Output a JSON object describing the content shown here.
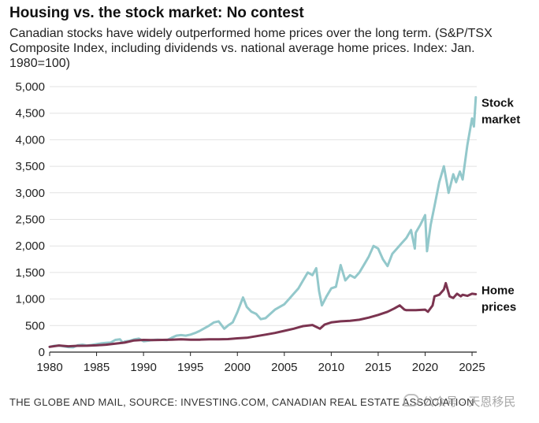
{
  "chart_data": {
    "type": "line",
    "title": "Housing vs. the stock market: No contest",
    "subtitle": "Canadian stocks have widely outperformed home prices over the long term. (S&P/TSX Composite Index, including dividends vs. national average home prices. Index: Jan. 1980=100)",
    "xlabel": "",
    "ylabel": "",
    "xlim": [
      1980,
      2025.5
    ],
    "ylim": [
      0,
      5000
    ],
    "x_ticks": [
      1980,
      1985,
      1990,
      1995,
      2000,
      2005,
      2010,
      2015,
      2020,
      2025
    ],
    "y_ticks": [
      0,
      500,
      1000,
      1500,
      2000,
      2500,
      3000,
      3500,
      4000,
      4500,
      5000
    ],
    "y_tick_labels": [
      "0",
      "500",
      "1,000",
      "1,500",
      "2,000",
      "2,500",
      "3,000",
      "3,500",
      "4,000",
      "4,500",
      "5,000"
    ],
    "grid": "horizontal",
    "legend": "inline labels at right end of lines",
    "series": [
      {
        "name": "Stock market",
        "label_lines": [
          "Stock",
          "market"
        ],
        "color": "#93c8cb",
        "points": [
          [
            1980,
            100
          ],
          [
            1980.5,
            118
          ],
          [
            1981,
            125
          ],
          [
            1981.5,
            110
          ],
          [
            1982,
            95
          ],
          [
            1982.5,
            90
          ],
          [
            1983,
            130
          ],
          [
            1983.5,
            140
          ],
          [
            1984,
            125
          ],
          [
            1984.5,
            135
          ],
          [
            1985,
            150
          ],
          [
            1985.5,
            165
          ],
          [
            1986,
            175
          ],
          [
            1986.5,
            180
          ],
          [
            1987,
            230
          ],
          [
            1987.5,
            240
          ],
          [
            1987.8,
            175
          ],
          [
            1988,
            200
          ],
          [
            1988.5,
            210
          ],
          [
            1989,
            240
          ],
          [
            1989.5,
            255
          ],
          [
            1990,
            205
          ],
          [
            1990.5,
            215
          ],
          [
            1991,
            230
          ],
          [
            1991.5,
            235
          ],
          [
            1992,
            230
          ],
          [
            1992.5,
            225
          ],
          [
            1993,
            270
          ],
          [
            1993.5,
            310
          ],
          [
            1994,
            320
          ],
          [
            1994.5,
            310
          ],
          [
            1995,
            330
          ],
          [
            1995.5,
            360
          ],
          [
            1996,
            400
          ],
          [
            1996.5,
            450
          ],
          [
            1997,
            500
          ],
          [
            1997.5,
            560
          ],
          [
            1998,
            580
          ],
          [
            1998.6,
            440
          ],
          [
            1999,
            500
          ],
          [
            1999.5,
            560
          ],
          [
            2000,
            750
          ],
          [
            2000.6,
            1030
          ],
          [
            2001,
            850
          ],
          [
            2001.5,
            760
          ],
          [
            2002,
            720
          ],
          [
            2002.5,
            620
          ],
          [
            2003,
            640
          ],
          [
            2003.5,
            720
          ],
          [
            2004,
            800
          ],
          [
            2004.5,
            850
          ],
          [
            2005,
            900
          ],
          [
            2005.5,
            1000
          ],
          [
            2006,
            1100
          ],
          [
            2006.5,
            1200
          ],
          [
            2007,
            1350
          ],
          [
            2007.5,
            1500
          ],
          [
            2008,
            1450
          ],
          [
            2008.4,
            1580
          ],
          [
            2008.7,
            1150
          ],
          [
            2009,
            880
          ],
          [
            2009.5,
            1050
          ],
          [
            2010,
            1200
          ],
          [
            2010.5,
            1230
          ],
          [
            2011,
            1640
          ],
          [
            2011.5,
            1350
          ],
          [
            2012,
            1450
          ],
          [
            2012.5,
            1400
          ],
          [
            2013,
            1500
          ],
          [
            2013.5,
            1650
          ],
          [
            2014,
            1800
          ],
          [
            2014.5,
            2000
          ],
          [
            2015,
            1950
          ],
          [
            2015.5,
            1750
          ],
          [
            2016,
            1620
          ],
          [
            2016.5,
            1850
          ],
          [
            2017,
            1950
          ],
          [
            2017.5,
            2050
          ],
          [
            2018,
            2150
          ],
          [
            2018.5,
            2300
          ],
          [
            2018.9,
            1950
          ],
          [
            2019,
            2250
          ],
          [
            2019.5,
            2400
          ],
          [
            2020,
            2580
          ],
          [
            2020.2,
            1900
          ],
          [
            2020.6,
            2400
          ],
          [
            2021,
            2750
          ],
          [
            2021.5,
            3200
          ],
          [
            2022,
            3500
          ],
          [
            2022.5,
            3000
          ],
          [
            2023,
            3350
          ],
          [
            2023.3,
            3200
          ],
          [
            2023.7,
            3400
          ],
          [
            2024,
            3250
          ],
          [
            2024.5,
            3900
          ],
          [
            2025,
            4400
          ],
          [
            2025.2,
            4250
          ],
          [
            2025.4,
            4800
          ]
        ]
      },
      {
        "name": "Home prices",
        "label_lines": [
          "Home",
          "prices"
        ],
        "color": "#7b3450",
        "points": [
          [
            1980,
            100
          ],
          [
            1981,
            125
          ],
          [
            1982,
            110
          ],
          [
            1983,
            118
          ],
          [
            1984,
            120
          ],
          [
            1985,
            128
          ],
          [
            1986,
            140
          ],
          [
            1987,
            160
          ],
          [
            1988,
            180
          ],
          [
            1989,
            220
          ],
          [
            1990,
            230
          ],
          [
            1991,
            225
          ],
          [
            1992,
            230
          ],
          [
            1993,
            235
          ],
          [
            1994,
            240
          ],
          [
            1995,
            235
          ],
          [
            1996,
            235
          ],
          [
            1997,
            240
          ],
          [
            1998,
            240
          ],
          [
            1999,
            245
          ],
          [
            2000,
            260
          ],
          [
            2001,
            270
          ],
          [
            2002,
            300
          ],
          [
            2003,
            330
          ],
          [
            2004,
            360
          ],
          [
            2005,
            400
          ],
          [
            2006,
            440
          ],
          [
            2007,
            490
          ],
          [
            2008,
            510
          ],
          [
            2008.8,
            440
          ],
          [
            2009.3,
            520
          ],
          [
            2010,
            560
          ],
          [
            2011,
            580
          ],
          [
            2012,
            590
          ],
          [
            2013,
            610
          ],
          [
            2014,
            650
          ],
          [
            2015,
            700
          ],
          [
            2016,
            760
          ],
          [
            2016.7,
            820
          ],
          [
            2017.3,
            880
          ],
          [
            2017.8,
            800
          ],
          [
            2018,
            790
          ],
          [
            2019,
            790
          ],
          [
            2020,
            800
          ],
          [
            2020.3,
            760
          ],
          [
            2020.8,
            880
          ],
          [
            2021,
            1050
          ],
          [
            2021.5,
            1080
          ],
          [
            2022,
            1180
          ],
          [
            2022.2,
            1300
          ],
          [
            2022.6,
            1050
          ],
          [
            2023,
            1020
          ],
          [
            2023.4,
            1100
          ],
          [
            2023.8,
            1050
          ],
          [
            2024,
            1080
          ],
          [
            2024.5,
            1060
          ],
          [
            2025,
            1100
          ],
          [
            2025.4,
            1090
          ]
        ]
      }
    ]
  },
  "source": "THE GLOBE AND MAIL, SOURCE: INVESTING.COM, CANADIAN REAL ESTATE ASSOCIATION",
  "watermark": "公众号 · 天恩移民"
}
